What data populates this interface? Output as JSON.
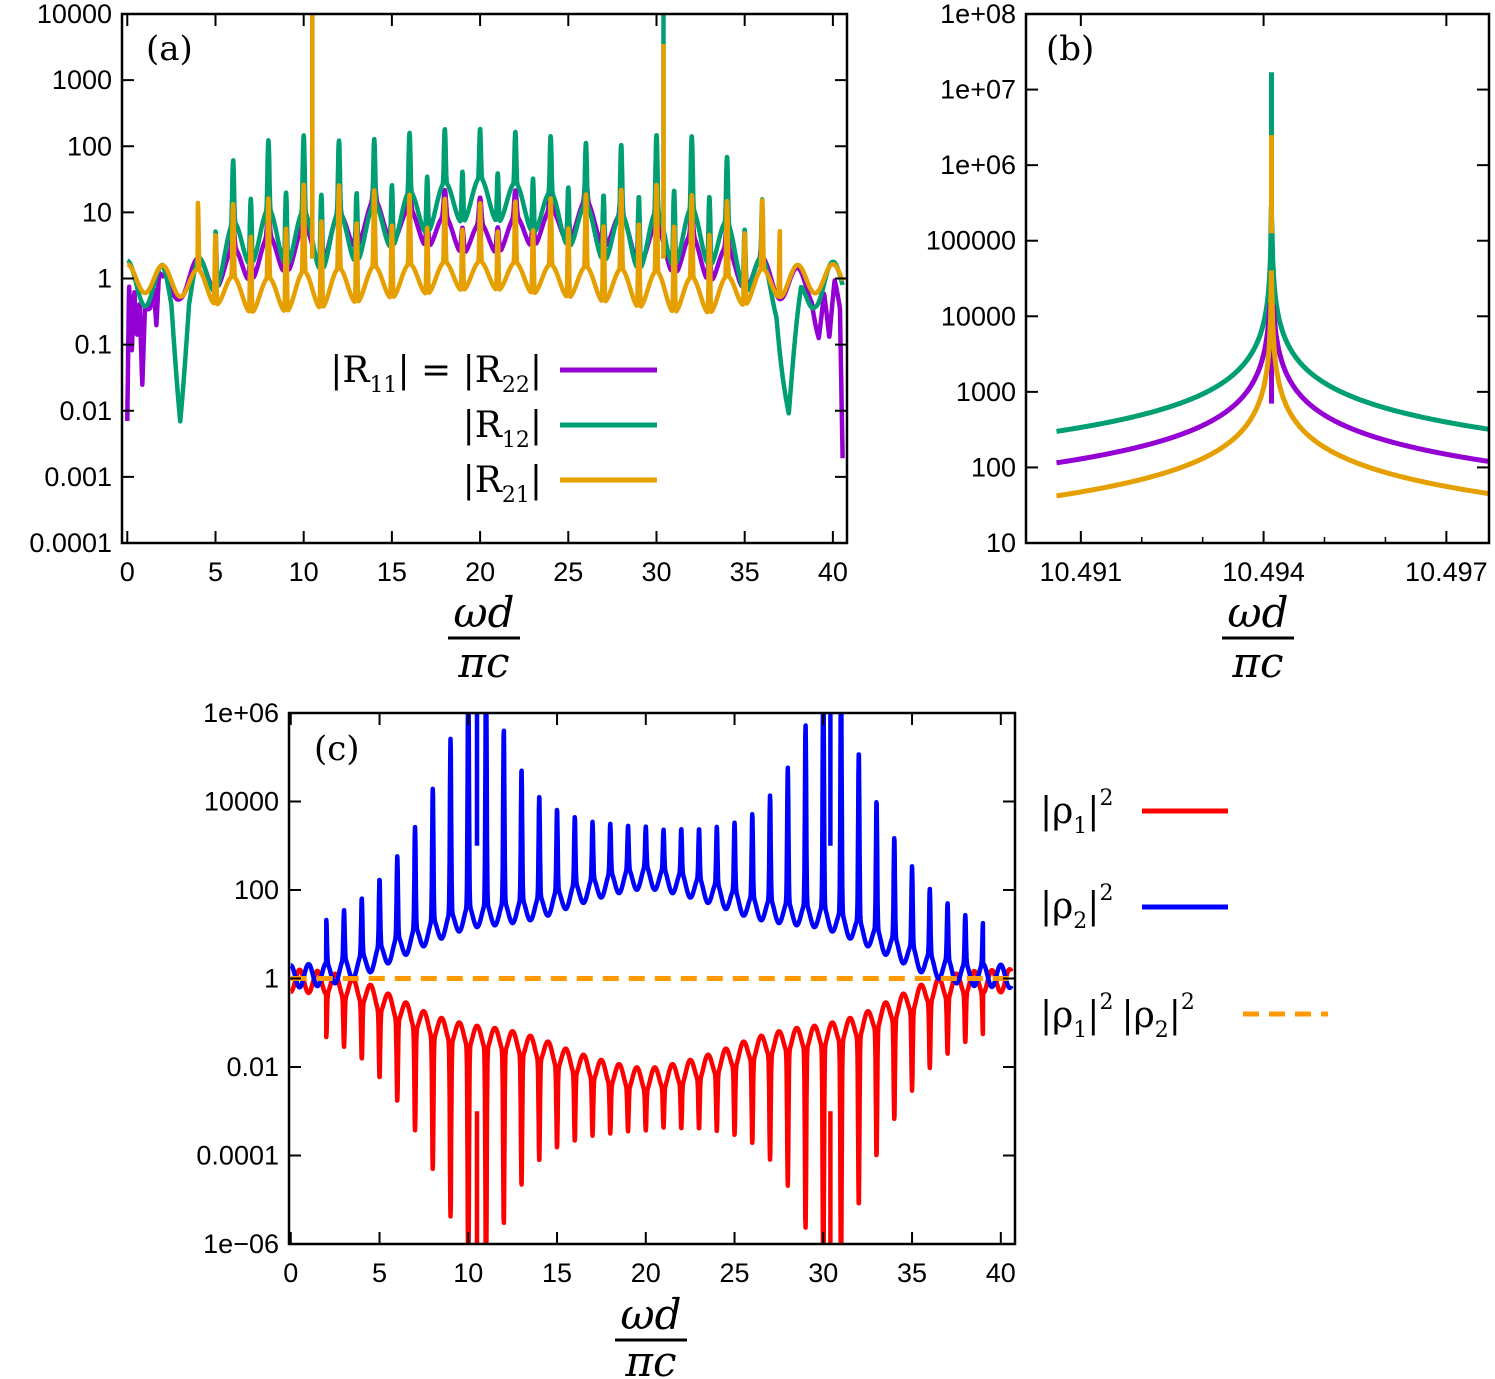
{
  "chart_data": [
    {
      "id": "a",
      "type": "line",
      "panel_label": "(a)",
      "xlabel_num": "ωd",
      "xlabel_den": "πc",
      "xlim": [
        -0.3,
        40.8
      ],
      "ylim": [
        0.0001,
        10000
      ],
      "yscale": "log",
      "xticks": [
        0,
        5,
        10,
        15,
        20,
        25,
        30,
        35,
        40
      ],
      "xtick_labels": [
        "0",
        "5",
        "10",
        "15",
        "20",
        "25",
        "30",
        "35",
        "40"
      ],
      "yticks": [
        0.0001,
        0.001,
        0.01,
        0.1,
        1,
        10,
        100,
        1000,
        10000
      ],
      "ytick_labels": [
        "0.0001",
        "0.001",
        "0.01",
        "0.1",
        "1",
        "10",
        "100",
        "1000",
        "10000"
      ],
      "legend_position": "middle-right",
      "series": [
        {
          "legend_parts": [
            "|R",
            "11",
            "| = |R",
            "22",
            "|"
          ],
          "color": "#9400d3",
          "points": [
            [
              0,
              0.004
            ],
            [
              0.1,
              0.5
            ],
            [
              0.25,
              0.05
            ],
            [
              0.4,
              0.55
            ],
            [
              0.55,
              0.15
            ],
            [
              0.7,
              0.6
            ],
            [
              0.85,
              0.04
            ],
            [
              1.0,
              0.65
            ],
            [
              1.3,
              0.5
            ],
            [
              1.5,
              0.7
            ],
            [
              1.65,
              0.15
            ],
            [
              1.8,
              0.75
            ],
            [
              2.0,
              0.6
            ],
            [
              2.3,
              0.8
            ],
            [
              2.6,
              0.7
            ],
            [
              3,
              0.9
            ],
            [
              4,
              1.1
            ],
            [
              5,
              1.3
            ],
            [
              6,
              1.5
            ],
            [
              7,
              1.8
            ],
            [
              8,
              2.2
            ],
            [
              9,
              2.5
            ],
            [
              10,
              2.8
            ],
            [
              11,
              3.5
            ],
            [
              12,
              4.5
            ],
            [
              13,
              6
            ],
            [
              14,
              8
            ],
            [
              15,
              7
            ],
            [
              16,
              6
            ],
            [
              17,
              5.5
            ],
            [
              18,
              4.8
            ],
            [
              19,
              4.2
            ],
            [
              20,
              3.8
            ],
            [
              21,
              4.2
            ],
            [
              22,
              4.8
            ],
            [
              23,
              5.5
            ],
            [
              24,
              6
            ],
            [
              25,
              7
            ],
            [
              26,
              8
            ],
            [
              27,
              6
            ],
            [
              28,
              4.5
            ],
            [
              29,
              3.5
            ],
            [
              30,
              2.8
            ],
            [
              31,
              2.5
            ],
            [
              32,
              2.2
            ],
            [
              33,
              1.8
            ],
            [
              34,
              1.5
            ],
            [
              35,
              1.3
            ],
            [
              36,
              1.1
            ],
            [
              37,
              0.9
            ],
            [
              38,
              0.8
            ],
            [
              38.8,
              0.7
            ],
            [
              39.2,
              0.2
            ],
            [
              39.5,
              0.6
            ],
            [
              39.8,
              0.08
            ],
            [
              40.1,
              0.55
            ],
            [
              40.4,
              0.3
            ],
            [
              40.6,
              0.0004
            ]
          ]
        },
        {
          "legend_parts": [
            "|R",
            "12",
            "|"
          ],
          "color": "#009e73",
          "points": [
            [
              0,
              0.9
            ],
            [
              1,
              0.8
            ],
            [
              2,
              0.75
            ],
            [
              2.5,
              0.4
            ],
            [
              3,
              0.015
            ],
            [
              3.5,
              0.4
            ],
            [
              4,
              0.9
            ],
            [
              5,
              1.5
            ],
            [
              6,
              3
            ],
            [
              7,
              4
            ],
            [
              8,
              4.5
            ],
            [
              9,
              4.2
            ],
            [
              10,
              3.8
            ],
            [
              11,
              3.6
            ],
            [
              12,
              3.8
            ],
            [
              13,
              4.5
            ],
            [
              14,
              5.5
            ],
            [
              15,
              7
            ],
            [
              16,
              9
            ],
            [
              17,
              11
            ],
            [
              18,
              13
            ],
            [
              19,
              15
            ],
            [
              20,
              16
            ],
            [
              21,
              15
            ],
            [
              22,
              13
            ],
            [
              23,
              11
            ],
            [
              24,
              9
            ],
            [
              25,
              7
            ],
            [
              26,
              5.5
            ],
            [
              27,
              4.5
            ],
            [
              28,
              3.8
            ],
            [
              29,
              3.6
            ],
            [
              30,
              3.8
            ],
            [
              31,
              4.2
            ],
            [
              32,
              4.5
            ],
            [
              33,
              4
            ],
            [
              34,
              3
            ],
            [
              35,
              1.5
            ],
            [
              36,
              0.9
            ],
            [
              36.8,
              0.5
            ],
            [
              37.5,
              0.009
            ],
            [
              38.2,
              0.4
            ],
            [
              39,
              0.8
            ],
            [
              40,
              0.85
            ],
            [
              40.6,
              0.9
            ]
          ]
        },
        {
          "legend_parts": [
            "|R",
            "21",
            "|"
          ],
          "color": "#e69f00",
          "points": [
            [
              0,
              1
            ],
            [
              1,
              1
            ],
            [
              2,
              0.95
            ],
            [
              3,
              0.9
            ],
            [
              4,
              0.8
            ],
            [
              5,
              0.7
            ],
            [
              6,
              0.6
            ],
            [
              7,
              0.55
            ],
            [
              8,
              0.55
            ],
            [
              9,
              0.6
            ],
            [
              10,
              0.65
            ],
            [
              11,
              0.7
            ],
            [
              12,
              0.75
            ],
            [
              13,
              0.8
            ],
            [
              14,
              0.85
            ],
            [
              15,
              0.9
            ],
            [
              16,
              0.95
            ],
            [
              17,
              1
            ],
            [
              18,
              1.05
            ],
            [
              19,
              1.1
            ],
            [
              20,
              1.1
            ],
            [
              21,
              1.1
            ],
            [
              22,
              1.05
            ],
            [
              23,
              1
            ],
            [
              24,
              0.95
            ],
            [
              25,
              0.9
            ],
            [
              26,
              0.85
            ],
            [
              27,
              0.8
            ],
            [
              28,
              0.75
            ],
            [
              29,
              0.7
            ],
            [
              30,
              0.65
            ],
            [
              31,
              0.6
            ],
            [
              32,
              0.55
            ],
            [
              33,
              0.55
            ],
            [
              34,
              0.6
            ],
            [
              35,
              0.7
            ],
            [
              36,
              0.8
            ],
            [
              37,
              0.9
            ],
            [
              38,
              0.95
            ],
            [
              39,
              1
            ],
            [
              40,
              1
            ],
            [
              40.6,
              1
            ]
          ]
        }
      ]
    },
    {
      "id": "b",
      "type": "line",
      "panel_label": "(b)",
      "xlabel_num": "ωd",
      "xlabel_den": "πc",
      "xlim": [
        10.4901,
        10.4977
      ],
      "ylim": [
        10,
        100000000
      ],
      "yscale": "log",
      "xticks": [
        10.491,
        10.494,
        10.497
      ],
      "xtick_labels": [
        "10.491",
        "10.494",
        "10.497"
      ],
      "yticks": [
        10,
        100,
        1000,
        10000,
        100000,
        1000000,
        10000000,
        100000000
      ],
      "ytick_labels": [
        "10",
        "100",
        "1000",
        "10000",
        "100000",
        "1e+06",
        "1e+07",
        "1e+08"
      ],
      "resonance_x": 10.49413,
      "series": [
        {
          "name": "|R11| = |R22|",
          "color": "#9400d3",
          "edge_left": 115,
          "edge_right": 120,
          "peak": 14000
        },
        {
          "name": "|R12|",
          "color": "#009e73",
          "edge_left": 300,
          "edge_right": 320,
          "peak": 17000000
        },
        {
          "name": "|R21|",
          "color": "#e69f00",
          "edge_left": 42,
          "edge_right": 45,
          "peak": 2500000
        }
      ]
    },
    {
      "id": "c",
      "type": "line",
      "panel_label": "(c)",
      "xlabel_num": "ωd",
      "xlabel_den": "πc",
      "xlim": [
        -0.1,
        40.8
      ],
      "ylim": [
        1e-06,
        1000000
      ],
      "yscale": "log",
      "xticks": [
        0,
        5,
        10,
        15,
        20,
        25,
        30,
        35,
        40
      ],
      "xtick_labels": [
        "0",
        "5",
        "10",
        "15",
        "20",
        "25",
        "30",
        "35",
        "40"
      ],
      "yticks": [
        1e-06,
        0.0001,
        0.01,
        1,
        100,
        10000,
        1000000
      ],
      "ytick_labels": [
        "1e−06",
        "0.0001",
        "0.01",
        "1",
        "100",
        "10000",
        "1e+06"
      ],
      "legend_position": "outside-right",
      "series": [
        {
          "legend_parts": [
            "|ρ",
            "1",
            "|",
            "2"
          ],
          "color": "#ff0000",
          "points": [
            [
              0,
              0.9
            ],
            [
              2,
              0.8
            ],
            [
              4,
              0.5
            ],
            [
              6,
              0.2
            ],
            [
              8,
              0.08
            ],
            [
              10,
              0.05
            ],
            [
              12,
              0.04
            ],
            [
              14,
              0.025
            ],
            [
              16,
              0.012
            ],
            [
              18,
              0.007
            ],
            [
              20,
              0.005
            ],
            [
              22,
              0.007
            ],
            [
              24,
              0.012
            ],
            [
              26,
              0.025
            ],
            [
              28,
              0.04
            ],
            [
              30,
              0.05
            ],
            [
              32,
              0.08
            ],
            [
              34,
              0.2
            ],
            [
              36,
              0.5
            ],
            [
              38,
              0.8
            ],
            [
              40.6,
              0.9
            ]
          ]
        },
        {
          "legend_parts": [
            "|ρ",
            "2",
            "|",
            "2"
          ],
          "color": "#0000ff",
          "points": [
            [
              0,
              1.1
            ],
            [
              2,
              1.25
            ],
            [
              4,
              2
            ],
            [
              6,
              5
            ],
            [
              8,
              12
            ],
            [
              10,
              25
            ],
            [
              12,
              30
            ],
            [
              14,
              40
            ],
            [
              16,
              80
            ],
            [
              18,
              140
            ],
            [
              20,
              200
            ],
            [
              22,
              140
            ],
            [
              24,
              80
            ],
            [
              26,
              40
            ],
            [
              28,
              30
            ],
            [
              30,
              25
            ],
            [
              32,
              12
            ],
            [
              34,
              5
            ],
            [
              36,
              2
            ],
            [
              38,
              1.25
            ],
            [
              40.6,
              1.1
            ]
          ]
        },
        {
          "legend_parts": [
            "|ρ",
            "1",
            "|",
            "2",
            "|ρ",
            "2",
            "|",
            "2"
          ],
          "color": "#ff9900",
          "dashed": true,
          "points": [
            [
              0,
              1
            ],
            [
              40.6,
              1
            ]
          ]
        }
      ]
    }
  ]
}
